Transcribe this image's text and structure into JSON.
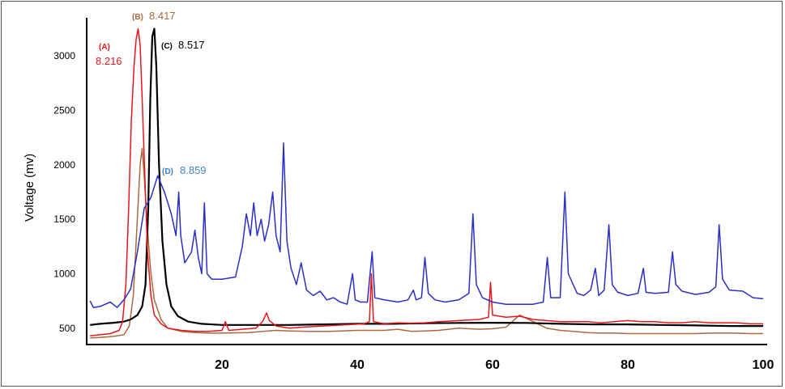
{
  "chart_data": {
    "type": "line",
    "ylabel": "Voltage (mv)",
    "xlabel": "",
    "xlim": [
      0,
      100
    ],
    "ylim": [
      350,
      3350
    ],
    "x_ticks": [
      20,
      40,
      60,
      80,
      100
    ],
    "y_ticks": [
      500,
      1000,
      1500,
      2000,
      2500,
      3000
    ],
    "grid": false,
    "series": [
      {
        "name": "(A)",
        "color": "#e8161b",
        "peak_label": "8.216",
        "points": [
          [
            0.5,
            430
          ],
          [
            2,
            440
          ],
          [
            3.5,
            450
          ],
          [
            4.8,
            480
          ],
          [
            5.3,
            560
          ],
          [
            5.8,
            900
          ],
          [
            6.2,
            1600
          ],
          [
            6.6,
            2400
          ],
          [
            7,
            2900
          ],
          [
            7.3,
            3150
          ],
          [
            7.6,
            3250
          ],
          [
            7.9,
            3100
          ],
          [
            8.2,
            2600
          ],
          [
            8.6,
            1900
          ],
          [
            9,
            1200
          ],
          [
            9.5,
            800
          ],
          [
            10,
            620
          ],
          [
            11,
            540
          ],
          [
            12,
            500
          ],
          [
            14,
            480
          ],
          [
            16,
            470
          ],
          [
            18,
            470
          ],
          [
            20,
            480
          ],
          [
            20.5,
            560
          ],
          [
            21,
            480
          ],
          [
            23,
            490
          ],
          [
            25,
            500
          ],
          [
            26,
            560
          ],
          [
            26.6,
            640
          ],
          [
            27,
            570
          ],
          [
            28,
            520
          ],
          [
            30,
            500
          ],
          [
            32,
            510
          ],
          [
            35,
            520
          ],
          [
            38,
            530
          ],
          [
            41,
            540
          ],
          [
            41.8,
            560
          ],
          [
            42.1,
            1000
          ],
          [
            42.4,
            560
          ],
          [
            44,
            540
          ],
          [
            46,
            550
          ],
          [
            48,
            545
          ],
          [
            50,
            550
          ],
          [
            52,
            560
          ],
          [
            55,
            570
          ],
          [
            58,
            580
          ],
          [
            59.4,
            600
          ],
          [
            59.7,
            920
          ],
          [
            60,
            620
          ],
          [
            62,
            600
          ],
          [
            64,
            610
          ],
          [
            66,
            580
          ],
          [
            68,
            570
          ],
          [
            70,
            560
          ],
          [
            72,
            560
          ],
          [
            74,
            560
          ],
          [
            76,
            550
          ],
          [
            78,
            560
          ],
          [
            80,
            570
          ],
          [
            82,
            560
          ],
          [
            84,
            560
          ],
          [
            86,
            550
          ],
          [
            88,
            550
          ],
          [
            90,
            560
          ],
          [
            92,
            550
          ],
          [
            94,
            550
          ],
          [
            96,
            550
          ],
          [
            98,
            540
          ],
          [
            100,
            540
          ]
        ]
      },
      {
        "name": "(B)",
        "color": "#a86a3e",
        "peak_label": "8.417",
        "points": [
          [
            0.5,
            410
          ],
          [
            2,
            415
          ],
          [
            4,
            425
          ],
          [
            5.5,
            440
          ],
          [
            6.3,
            520
          ],
          [
            6.9,
            800
          ],
          [
            7.4,
            1400
          ],
          [
            7.9,
            2000
          ],
          [
            8.2,
            2150
          ],
          [
            8.5,
            1900
          ],
          [
            9,
            1400
          ],
          [
            9.5,
            1000
          ],
          [
            10,
            760
          ],
          [
            11,
            580
          ],
          [
            12,
            500
          ],
          [
            14,
            470
          ],
          [
            16,
            460
          ],
          [
            18,
            455
          ],
          [
            20,
            455
          ],
          [
            24,
            460
          ],
          [
            26,
            470
          ],
          [
            28,
            480
          ],
          [
            30,
            475
          ],
          [
            33,
            470
          ],
          [
            36,
            470
          ],
          [
            40,
            480
          ],
          [
            44,
            480
          ],
          [
            46,
            490
          ],
          [
            48,
            470
          ],
          [
            50,
            475
          ],
          [
            52,
            480
          ],
          [
            55,
            500
          ],
          [
            58,
            490
          ],
          [
            60,
            495
          ],
          [
            62,
            510
          ],
          [
            64,
            620
          ],
          [
            66,
            560
          ],
          [
            68,
            500
          ],
          [
            70,
            480
          ],
          [
            72,
            470
          ],
          [
            74,
            460
          ],
          [
            76,
            455
          ],
          [
            78,
            455
          ],
          [
            80,
            450
          ],
          [
            82,
            450
          ],
          [
            84,
            450
          ],
          [
            86,
            450
          ],
          [
            88,
            450
          ],
          [
            90,
            450
          ],
          [
            92,
            455
          ],
          [
            94,
            455
          ],
          [
            96,
            455
          ],
          [
            98,
            450
          ],
          [
            100,
            450
          ]
        ]
      },
      {
        "name": "(C)",
        "color": "#000000",
        "peak_label": "8.517",
        "points": [
          [
            0.5,
            530
          ],
          [
            2,
            540
          ],
          [
            4,
            550
          ],
          [
            5.5,
            560
          ],
          [
            6.5,
            580
          ],
          [
            7.5,
            620
          ],
          [
            8.2,
            700
          ],
          [
            8.7,
            900
          ],
          [
            9.1,
            1600
          ],
          [
            9.4,
            2600
          ],
          [
            9.7,
            3180
          ],
          [
            10,
            3250
          ],
          [
            10.3,
            2900
          ],
          [
            10.7,
            2000
          ],
          [
            11.2,
            1300
          ],
          [
            11.8,
            900
          ],
          [
            12.5,
            700
          ],
          [
            13.5,
            610
          ],
          [
            15,
            560
          ],
          [
            17,
            540
          ],
          [
            20,
            530
          ],
          [
            25,
            530
          ],
          [
            30,
            530
          ],
          [
            35,
            535
          ],
          [
            40,
            540
          ],
          [
            45,
            540
          ],
          [
            50,
            545
          ],
          [
            55,
            548
          ],
          [
            60,
            550
          ],
          [
            65,
            548
          ],
          [
            70,
            540
          ],
          [
            75,
            535
          ],
          [
            80,
            535
          ],
          [
            85,
            530
          ],
          [
            90,
            525
          ],
          [
            95,
            520
          ],
          [
            100,
            520
          ]
        ]
      },
      {
        "name": "(D)",
        "color": "#2b2fc4",
        "peak_label": "8.859",
        "points": [
          [
            0.5,
            750
          ],
          [
            1,
            690
          ],
          [
            2,
            700
          ],
          [
            3.5,
            740
          ],
          [
            4.5,
            690
          ],
          [
            5.5,
            760
          ],
          [
            6.5,
            860
          ],
          [
            7.5,
            1200
          ],
          [
            8.5,
            1600
          ],
          [
            9.5,
            1700
          ],
          [
            10.5,
            1900
          ],
          [
            11.5,
            1750
          ],
          [
            12.5,
            1550
          ],
          [
            13.2,
            1350
          ],
          [
            13.6,
            1750
          ],
          [
            13.9,
            1350
          ],
          [
            14.5,
            1100
          ],
          [
            15.5,
            1200
          ],
          [
            16,
            1400
          ],
          [
            16.5,
            1150
          ],
          [
            17,
            1000
          ],
          [
            17.4,
            1650
          ],
          [
            17.8,
            1000
          ],
          [
            18.5,
            950
          ],
          [
            20,
            950
          ],
          [
            22,
            970
          ],
          [
            23,
            1250
          ],
          [
            23.6,
            1550
          ],
          [
            24.2,
            1350
          ],
          [
            24.7,
            1650
          ],
          [
            25.2,
            1350
          ],
          [
            25.8,
            1500
          ],
          [
            26.3,
            1300
          ],
          [
            26.9,
            1450
          ],
          [
            27.5,
            1750
          ],
          [
            28,
            1350
          ],
          [
            28.6,
            1200
          ],
          [
            29.1,
            2200
          ],
          [
            29.6,
            1300
          ],
          [
            30.2,
            1050
          ],
          [
            31,
            900
          ],
          [
            31.7,
            1100
          ],
          [
            32.5,
            850
          ],
          [
            33.5,
            800
          ],
          [
            34.5,
            840
          ],
          [
            35.5,
            760
          ],
          [
            36.5,
            780
          ],
          [
            37.5,
            740
          ],
          [
            38.5,
            720
          ],
          [
            39.3,
            1000
          ],
          [
            39.7,
            760
          ],
          [
            40.5,
            740
          ],
          [
            41.5,
            740
          ],
          [
            42.2,
            1200
          ],
          [
            42.6,
            780
          ],
          [
            44,
            760
          ],
          [
            45,
            750
          ],
          [
            46,
            740
          ],
          [
            47.5,
            760
          ],
          [
            48.3,
            850
          ],
          [
            48.7,
            760
          ],
          [
            49.5,
            780
          ],
          [
            50,
            1150
          ],
          [
            50.5,
            820
          ],
          [
            51.5,
            760
          ],
          [
            53,
            740
          ],
          [
            55,
            760
          ],
          [
            56.5,
            820
          ],
          [
            57.1,
            1550
          ],
          [
            57.6,
            900
          ],
          [
            58.5,
            780
          ],
          [
            60,
            740
          ],
          [
            62,
            720
          ],
          [
            64,
            720
          ],
          [
            66,
            720
          ],
          [
            67.5,
            740
          ],
          [
            68.1,
            1150
          ],
          [
            68.6,
            780
          ],
          [
            70,
            780
          ],
          [
            70.7,
            1750
          ],
          [
            71.2,
            1000
          ],
          [
            72.5,
            820
          ],
          [
            73.5,
            800
          ],
          [
            74.5,
            850
          ],
          [
            75.2,
            1050
          ],
          [
            75.7,
            800
          ],
          [
            76.5,
            850
          ],
          [
            77.2,
            1450
          ],
          [
            77.7,
            900
          ],
          [
            78.5,
            830
          ],
          [
            80,
            800
          ],
          [
            81.5,
            820
          ],
          [
            82.3,
            1050
          ],
          [
            82.7,
            830
          ],
          [
            84,
            820
          ],
          [
            86,
            830
          ],
          [
            86.6,
            1200
          ],
          [
            87.1,
            900
          ],
          [
            88,
            840
          ],
          [
            90,
            810
          ],
          [
            92,
            830
          ],
          [
            93,
            880
          ],
          [
            93.5,
            1450
          ],
          [
            94,
            950
          ],
          [
            95,
            850
          ],
          [
            97,
            840
          ],
          [
            98.5,
            780
          ],
          [
            100,
            770
          ]
        ]
      }
    ],
    "annotations": {
      "A_label": "(A)",
      "A_value": "8.216",
      "B_label": "(B)",
      "B_value": "8.417",
      "C_label": "(C)",
      "C_value": "8.517",
      "D_label": "(D)",
      "D_value": "8.859"
    }
  }
}
